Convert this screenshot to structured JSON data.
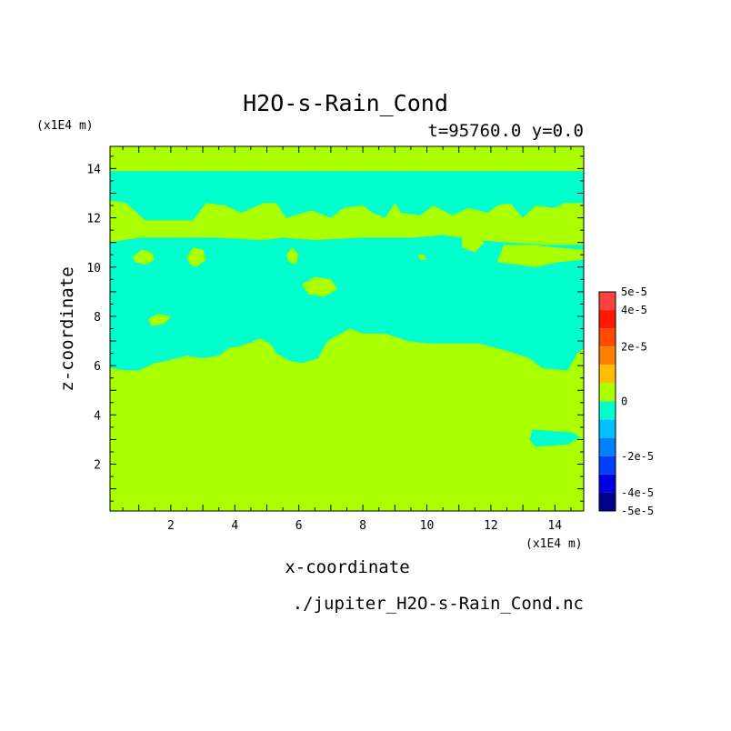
{
  "chart_data": {
    "type": "heatmap",
    "title": "H2O-s-Rain_Cond",
    "subtitle": "t=95760.0 y=0.0",
    "xlabel": "x-coordinate",
    "ylabel": "z-coordinate",
    "x_unit": "(x1E4 m)",
    "y_unit": "(x1E4 m)",
    "source_file": "./jupiter_H2O-s-Rain_Cond.nc",
    "xlim": [
      0.1,
      14.9
    ],
    "ylim": [
      0.1,
      14.9
    ],
    "x_ticks": [
      2,
      4,
      6,
      8,
      10,
      12,
      14
    ],
    "y_ticks": [
      2,
      4,
      6,
      8,
      10,
      12,
      14
    ],
    "grid": false,
    "colorbar": {
      "tick_labels": [
        "5e-5",
        "4e-5",
        "2e-5",
        "0",
        "-2e-5",
        "-4e-5",
        "-5e-5"
      ],
      "levels": [
        {
          "label": "5e-5 .. 4.5e-5",
          "color": "#ff4040"
        },
        {
          "label": "4.5e-5 .. 4e-5",
          "color": "#ff1a00"
        },
        {
          "label": "4e-5 .. 3e-5",
          "color": "#ff4a00"
        },
        {
          "label": "3e-5 .. 2e-5",
          "color": "#ff8000"
        },
        {
          "label": "2e-5 .. 1e-5",
          "color": "#ffbf00"
        },
        {
          "label": "1e-5 .. 0",
          "color": "#aaff00"
        },
        {
          "label": "0 .. -1e-5",
          "color": "#00ffcc"
        },
        {
          "label": "-1e-5 .. -2e-5",
          "color": "#00bfff"
        },
        {
          "label": "-2e-5 .. -3e-5",
          "color": "#0080ff"
        },
        {
          "label": "-3e-5 .. -4e-5",
          "color": "#0040ff"
        },
        {
          "label": "-4e-5 .. -4.5e-5",
          "color": "#0000e0"
        },
        {
          "label": "-4.5e-5 .. -5e-5",
          "color": "#00008c"
        }
      ]
    },
    "field": {
      "background_level": "1e-5 .. 0",
      "regions": [
        {
          "name": "cyan-band-main",
          "level": "0 .. -1e-5",
          "polygon": [
            [
              0.1,
              13.9
            ],
            [
              14.9,
              13.9
            ],
            [
              14.9,
              12.6
            ],
            [
              14.3,
              12.6
            ],
            [
              14.0,
              12.4
            ],
            [
              13.4,
              12.5
            ],
            [
              13.0,
              12.0
            ],
            [
              12.6,
              12.6
            ],
            [
              12.2,
              12.5
            ],
            [
              11.9,
              12.2
            ],
            [
              11.3,
              12.4
            ],
            [
              10.8,
              12.1
            ],
            [
              10.2,
              12.5
            ],
            [
              9.8,
              12.1
            ],
            [
              9.2,
              12.2
            ],
            [
              9.0,
              12.6
            ],
            [
              8.7,
              12.0
            ],
            [
              8.3,
              12.2
            ],
            [
              8.0,
              12.5
            ],
            [
              7.4,
              12.4
            ],
            [
              7.0,
              12.0
            ],
            [
              6.4,
              12.3
            ],
            [
              5.6,
              12.0
            ],
            [
              5.3,
              12.6
            ],
            [
              4.9,
              12.6
            ],
            [
              4.2,
              12.2
            ],
            [
              3.7,
              12.5
            ],
            [
              3.1,
              12.6
            ],
            [
              2.7,
              11.9
            ],
            [
              2.0,
              11.9
            ],
            [
              1.2,
              11.9
            ],
            [
              0.6,
              12.6
            ],
            [
              0.1,
              12.7
            ],
            [
              0.1,
              11.0
            ],
            [
              1.0,
              11.2
            ],
            [
              1.8,
              11.2
            ],
            [
              3.4,
              11.2
            ],
            [
              4.9,
              11.1
            ],
            [
              5.5,
              11.2
            ],
            [
              6.5,
              11.1
            ],
            [
              8.0,
              11.2
            ],
            [
              9.6,
              11.2
            ],
            [
              10.5,
              11.3
            ],
            [
              11.5,
              11.1
            ],
            [
              12.5,
              11.0
            ],
            [
              13.8,
              10.9
            ],
            [
              14.9,
              10.9
            ],
            [
              14.9,
              6.7
            ],
            [
              14.7,
              6.5
            ],
            [
              14.4,
              5.8
            ],
            [
              13.6,
              5.9
            ],
            [
              13.2,
              6.3
            ],
            [
              12.5,
              6.6
            ],
            [
              11.6,
              6.9
            ],
            [
              10.7,
              6.9
            ],
            [
              10.0,
              6.9
            ],
            [
              9.4,
              7.0
            ],
            [
              8.7,
              7.3
            ],
            [
              8.0,
              7.3
            ],
            [
              7.6,
              7.5
            ],
            [
              7.3,
              7.3
            ],
            [
              6.9,
              7.0
            ],
            [
              6.6,
              6.3
            ],
            [
              6.1,
              6.1
            ],
            [
              5.7,
              6.2
            ],
            [
              5.3,
              6.5
            ],
            [
              5.1,
              6.9
            ],
            [
              4.8,
              7.1
            ],
            [
              4.2,
              6.8
            ],
            [
              3.8,
              6.7
            ],
            [
              3.5,
              6.4
            ],
            [
              3.0,
              6.3
            ],
            [
              2.5,
              6.4
            ],
            [
              1.9,
              6.2
            ],
            [
              1.5,
              6.1
            ],
            [
              1.0,
              5.8
            ],
            [
              0.6,
              5.8
            ],
            [
              0.1,
              5.9
            ]
          ]
        },
        {
          "name": "cyan-blob-low",
          "level": "0 .. -1e-5",
          "polygon": [
            [
              13.3,
              3.4
            ],
            [
              14.5,
              3.3
            ],
            [
              14.8,
              3.1
            ],
            [
              14.4,
              2.8
            ],
            [
              13.4,
              2.7
            ],
            [
              13.2,
              3.0
            ]
          ]
        },
        {
          "name": "green-strip-right",
          "level": "1e-5 .. 0",
          "polygon": [
            [
              13.0,
              11.6
            ],
            [
              13.6,
              11.8
            ],
            [
              14.2,
              11.8
            ],
            [
              14.9,
              11.7
            ],
            [
              14.9,
              11.0
            ],
            [
              14.1,
              11.1
            ],
            [
              13.5,
              11.2
            ],
            [
              13.0,
              11.3
            ]
          ]
        },
        {
          "name": "green-blob-1",
          "level": "1e-5 .. 0",
          "polygon": [
            [
              0.8,
              10.4
            ],
            [
              1.1,
              10.7
            ],
            [
              1.4,
              10.6
            ],
            [
              1.5,
              10.3
            ],
            [
              1.2,
              10.1
            ],
            [
              0.9,
              10.2
            ]
          ]
        },
        {
          "name": "green-blob-2",
          "level": "1e-5 .. 0",
          "polygon": [
            [
              2.5,
              10.4
            ],
            [
              2.7,
              10.8
            ],
            [
              3.0,
              10.7
            ],
            [
              3.1,
              10.3
            ],
            [
              2.8,
              10.0
            ],
            [
              2.6,
              10.1
            ]
          ]
        },
        {
          "name": "green-blob-3",
          "level": "1e-5 .. 0",
          "polygon": [
            [
              5.6,
              10.5
            ],
            [
              5.8,
              10.8
            ],
            [
              6.0,
              10.5
            ],
            [
              5.9,
              10.1
            ],
            [
              5.7,
              10.2
            ]
          ]
        },
        {
          "name": "green-blob-4",
          "level": "1e-5 .. 0",
          "polygon": [
            [
              6.1,
              9.3
            ],
            [
              6.5,
              9.6
            ],
            [
              7.0,
              9.5
            ],
            [
              7.2,
              9.1
            ],
            [
              6.8,
              8.8
            ],
            [
              6.3,
              8.9
            ]
          ]
        },
        {
          "name": "green-blob-5",
          "level": "1e-5 .. 0",
          "polygon": [
            [
              1.3,
              7.9
            ],
            [
              1.6,
              8.1
            ],
            [
              2.0,
              8.0
            ],
            [
              1.8,
              7.7
            ],
            [
              1.4,
              7.6
            ]
          ]
        },
        {
          "name": "green-blob-6",
          "level": "1e-5 .. 0",
          "polygon": [
            [
              11.1,
              11.2
            ],
            [
              11.4,
              11.3
            ],
            [
              11.8,
              11.0
            ],
            [
              11.5,
              10.6
            ],
            [
              11.1,
              10.8
            ]
          ]
        },
        {
          "name": "green-blob-7",
          "level": "1e-5 .. 0",
          "polygon": [
            [
              12.2,
              10.2
            ],
            [
              12.4,
              10.9
            ],
            [
              13.3,
              10.9
            ],
            [
              14.0,
              10.8
            ],
            [
              14.9,
              10.7
            ],
            [
              14.9,
              10.3
            ],
            [
              14.1,
              10.2
            ],
            [
              13.4,
              10.0
            ],
            [
              12.8,
              10.1
            ]
          ]
        },
        {
          "name": "green-blob-8",
          "level": "1e-5 .. 0",
          "polygon": [
            [
              9.7,
              10.5
            ],
            [
              9.9,
              10.5
            ],
            [
              10.0,
              10.3
            ],
            [
              9.8,
              10.3
            ]
          ]
        }
      ]
    }
  }
}
